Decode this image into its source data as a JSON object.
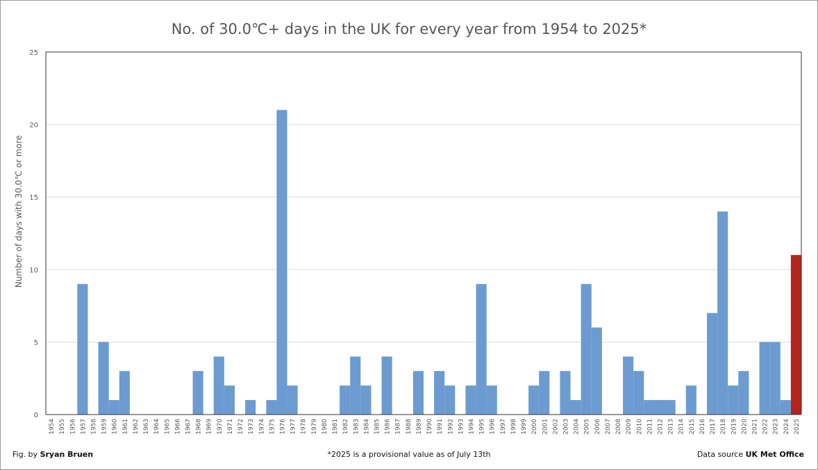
{
  "footer": {
    "credit_prefix": "Fig. by",
    "credit_name": "Sryan Bruen",
    "note": "*2025 is a provisional value as of July 13th",
    "source_prefix": "Data source",
    "source_name": "UK Met Office"
  },
  "colors": {
    "bar": "#6b9bd1",
    "highlight_bar": "#b3251c",
    "grid": "#dcdcdc",
    "axis_text": "#595959"
  },
  "chart_data": {
    "type": "bar",
    "title": "No. of 30.0℃+ days in the UK for every year from 1954 to 2025*",
    "xlabel": "",
    "ylabel": "Number of days with 30.0℃ or more",
    "ylim": [
      0,
      25
    ],
    "yticks": [
      0,
      5,
      10,
      15,
      20,
      25
    ],
    "grid": true,
    "highlight_category": "2025",
    "categories": [
      "1954",
      "1955",
      "1956",
      "1957",
      "1958",
      "1959",
      "1960",
      "1961",
      "1962",
      "1963",
      "1964",
      "1965",
      "1966",
      "1967",
      "1968",
      "1969",
      "1970",
      "1971",
      "1972",
      "1973",
      "1974",
      "1975",
      "1976",
      "1977",
      "1978",
      "1979",
      "1980",
      "1981",
      "1982",
      "1983",
      "1984",
      "1985",
      "1986",
      "1987",
      "1988",
      "1989",
      "1990",
      "1991",
      "1992",
      "1993",
      "1994",
      "1995",
      "1996",
      "1997",
      "1998",
      "1999",
      "2000",
      "2001",
      "2002",
      "2003",
      "2004",
      "2005",
      "2006",
      "2007",
      "2008",
      "2009",
      "2010",
      "2011",
      "2012",
      "2013",
      "2014",
      "2015",
      "2016",
      "2017",
      "2018",
      "2019",
      "2020",
      "2021",
      "2022",
      "2023",
      "2024",
      "2025"
    ],
    "values": [
      0,
      0,
      0,
      9,
      0,
      5,
      1,
      3,
      0,
      0,
      0,
      0,
      0,
      0,
      3,
      0,
      4,
      2,
      0,
      1,
      0,
      1,
      21,
      2,
      0,
      0,
      0,
      0,
      2,
      4,
      2,
      0,
      4,
      0,
      0,
      3,
      0,
      3,
      2,
      0,
      2,
      9,
      2,
      0,
      0,
      0,
      2,
      3,
      0,
      3,
      1,
      9,
      6,
      0,
      0,
      4,
      3,
      1,
      1,
      1,
      0,
      2,
      0,
      7,
      14,
      2,
      3,
      0,
      5,
      5,
      1,
      11
    ]
  }
}
